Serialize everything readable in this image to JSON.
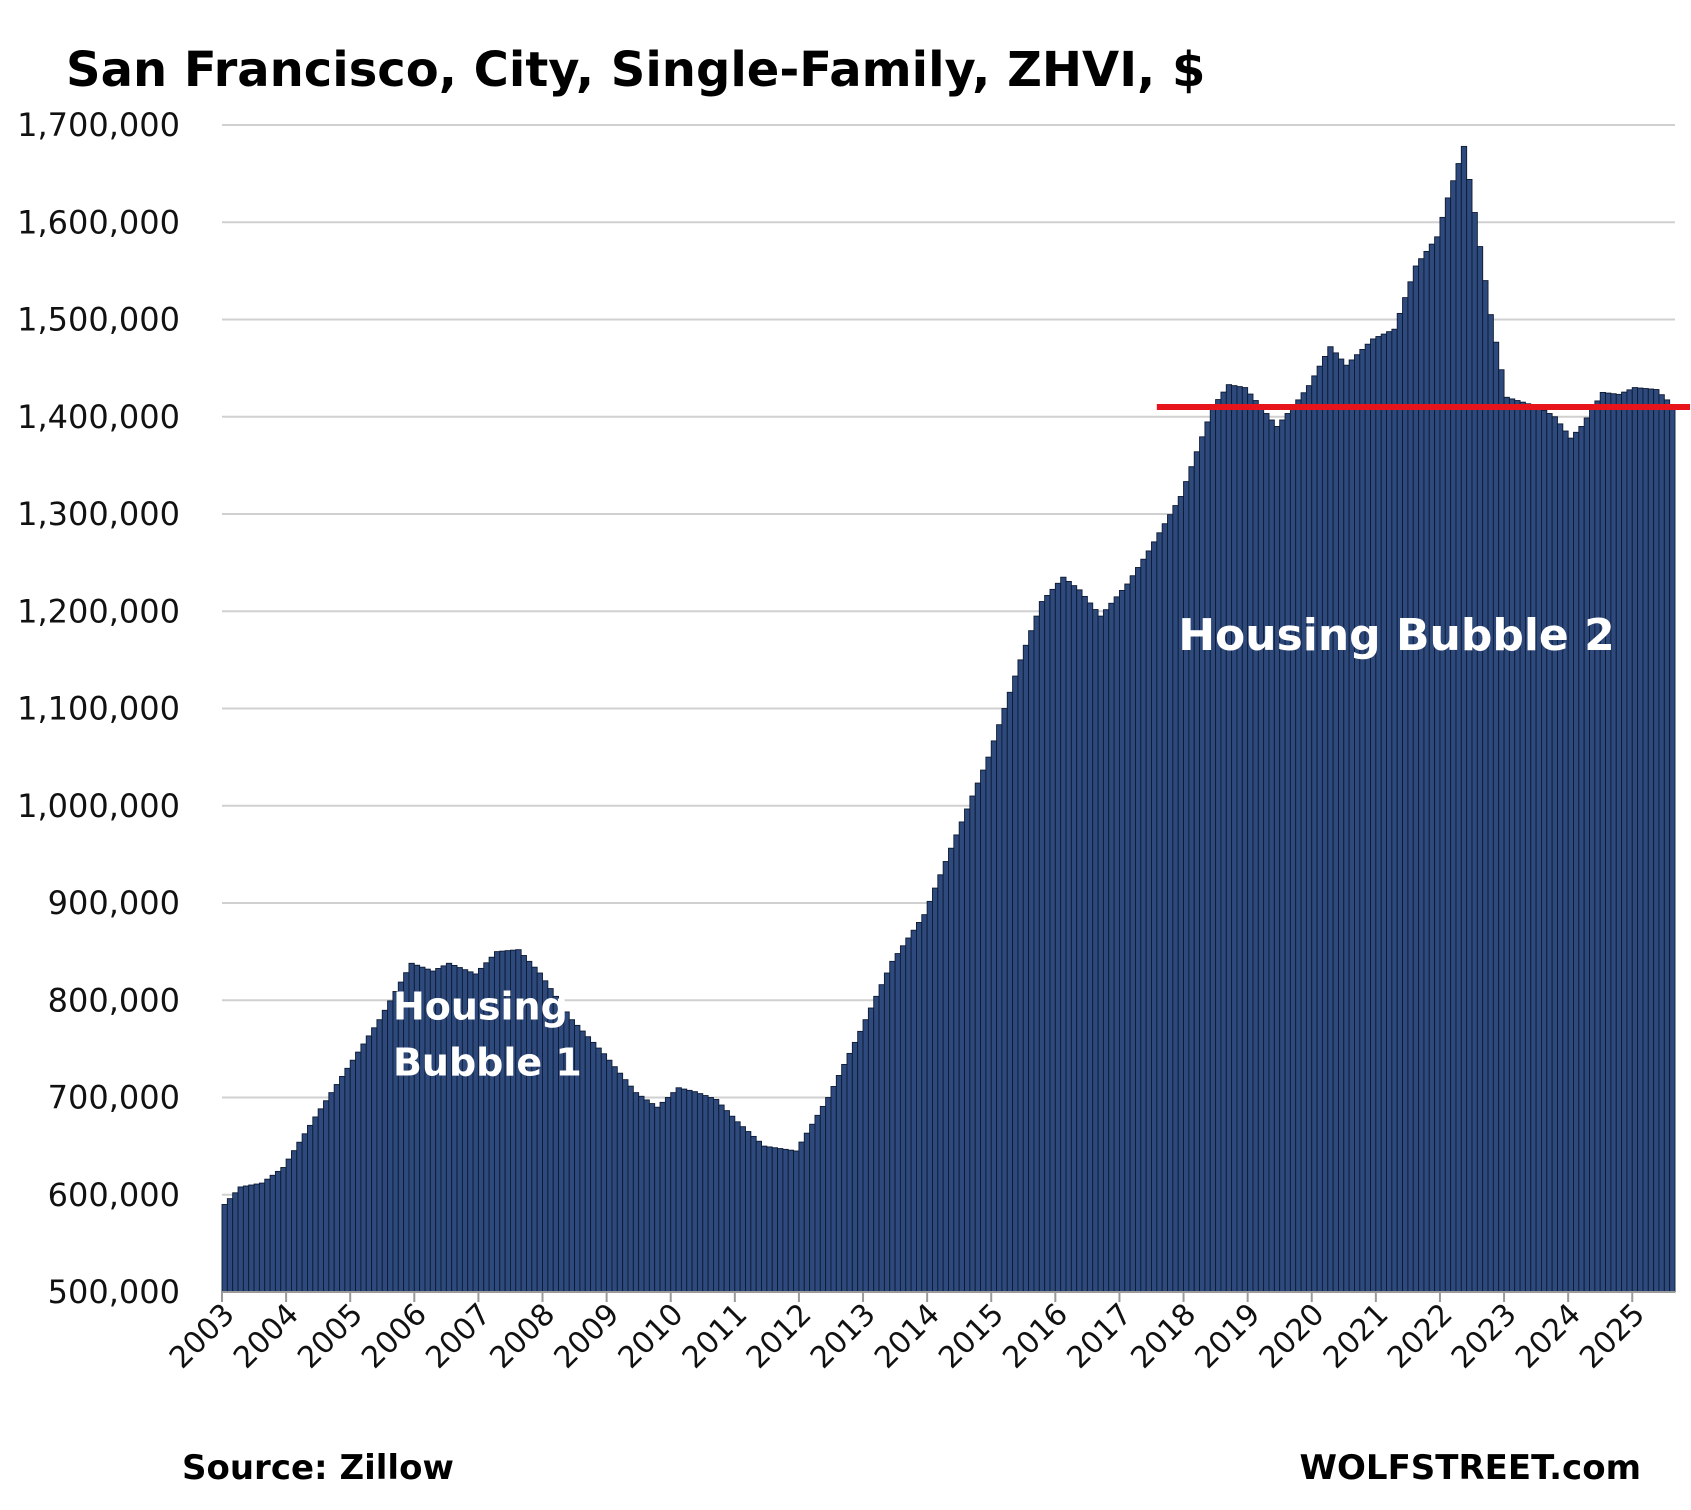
{
  "chart_data": {
    "type": "bar",
    "title": "San Francisco, City, Single-Family, ZHVI, $",
    "xlabel": "",
    "ylabel": "",
    "ylim": [
      500000,
      1700000
    ],
    "yticks": [
      "500,000",
      "600,000",
      "700,000",
      "800,000",
      "900,000",
      "1,000,000",
      "1,100,000",
      "1,200,000",
      "1,300,000",
      "1,400,000",
      "1,500,000",
      "1,600,000",
      "1,700,000"
    ],
    "xticks": [
      "2003",
      "2004",
      "2005",
      "2006",
      "2007",
      "2008",
      "2009",
      "2010",
      "2011",
      "2012",
      "2013",
      "2014",
      "2015",
      "2016",
      "2017",
      "2018",
      "2019",
      "2020",
      "2021",
      "2022",
      "2023",
      "2024",
      "2025"
    ],
    "grid": true,
    "frequency": "monthly",
    "start": "2003-01",
    "end": "2025-08",
    "anchors": [
      [
        "2003-01",
        590000
      ],
      [
        "2003-04",
        608000
      ],
      [
        "2003-08",
        612000
      ],
      [
        "2003-12",
        628000
      ],
      [
        "2004-06",
        680000
      ],
      [
        "2004-12",
        730000
      ],
      [
        "2005-06",
        780000
      ],
      [
        "2005-12",
        838000
      ],
      [
        "2006-04",
        830000
      ],
      [
        "2006-07",
        838000
      ],
      [
        "2006-12",
        827000
      ],
      [
        "2007-04",
        850000
      ],
      [
        "2007-08",
        852000
      ],
      [
        "2007-12",
        828000
      ],
      [
        "2008-06",
        780000
      ],
      [
        "2008-12",
        745000
      ],
      [
        "2009-06",
        705000
      ],
      [
        "2009-10",
        690000
      ],
      [
        "2010-02",
        710000
      ],
      [
        "2010-05",
        706000
      ],
      [
        "2010-09",
        698000
      ],
      [
        "2011-01",
        675000
      ],
      [
        "2011-06",
        650000
      ],
      [
        "2011-12",
        645000
      ],
      [
        "2012-06",
        700000
      ],
      [
        "2012-12",
        768000
      ],
      [
        "2013-06",
        840000
      ],
      [
        "2013-12",
        888000
      ],
      [
        "2014-06",
        970000
      ],
      [
        "2014-12",
        1050000
      ],
      [
        "2015-06",
        1150000
      ],
      [
        "2015-10",
        1210000
      ],
      [
        "2016-02",
        1235000
      ],
      [
        "2016-05",
        1222000
      ],
      [
        "2016-09",
        1195000
      ],
      [
        "2017-02",
        1228000
      ],
      [
        "2017-06",
        1262000
      ],
      [
        "2017-12",
        1318000
      ],
      [
        "2018-06",
        1410000
      ],
      [
        "2018-09",
        1433000
      ],
      [
        "2018-12",
        1430000
      ],
      [
        "2019-03",
        1410000
      ],
      [
        "2019-06",
        1390000
      ],
      [
        "2019-09",
        1410000
      ],
      [
        "2019-12",
        1432000
      ],
      [
        "2020-04",
        1472000
      ],
      [
        "2020-07",
        1453000
      ],
      [
        "2020-12",
        1480000
      ],
      [
        "2021-04",
        1490000
      ],
      [
        "2021-08",
        1555000
      ],
      [
        "2021-12",
        1585000
      ],
      [
        "2022-02",
        1625000
      ],
      [
        "2022-05",
        1678000
      ],
      [
        "2022-07",
        1610000
      ],
      [
        "2022-10",
        1505000
      ],
      [
        "2023-01",
        1420000
      ],
      [
        "2023-07",
        1410000
      ],
      [
        "2023-10",
        1400000
      ],
      [
        "2024-01",
        1378000
      ],
      [
        "2024-03",
        1390000
      ],
      [
        "2024-07",
        1425000
      ],
      [
        "2024-10",
        1423000
      ],
      [
        "2025-01",
        1430000
      ],
      [
        "2025-05",
        1428000
      ],
      [
        "2025-08",
        1412000
      ]
    ],
    "reference_line": {
      "y": 1410000,
      "x_start": "2017-08",
      "color": "#e8141b"
    },
    "annotations": [
      {
        "lines": [
          "Housing",
          "Bubble 1"
        ],
        "at": [
          "2005-09",
          780000
        ],
        "size": "medium"
      },
      {
        "lines": [
          "Housing Bubble 2"
        ],
        "at": [
          "2017-12",
          1160000
        ],
        "size": "large"
      }
    ],
    "colors": {
      "bar_fill": "#2e4a7d",
      "bar_edge": "#0d1a33",
      "grid": "#d0d0d0",
      "reference": "#e8141b"
    }
  },
  "footer": {
    "source": "Source: Zillow",
    "brand": "WOLFSTREET.com"
  }
}
